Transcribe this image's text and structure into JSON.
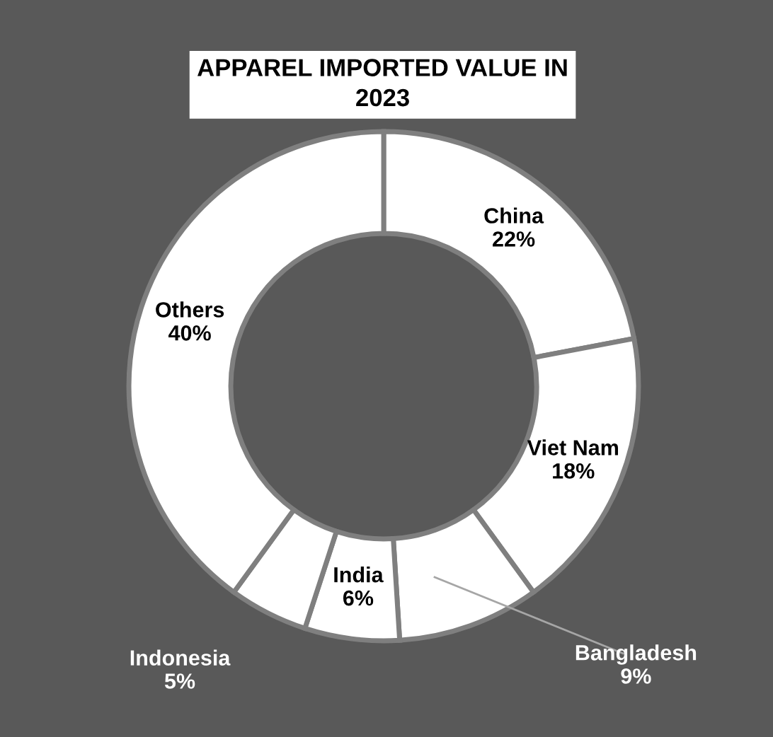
{
  "chart_data": {
    "type": "donut",
    "title": "APPAREL IMPORTED VALUE IN 2023",
    "categories": [
      "China",
      "Viet Nam",
      "Bangladesh",
      "India",
      "Indonesia",
      "Others"
    ],
    "values": [
      22,
      18,
      9,
      6,
      5,
      40
    ],
    "colors": [
      "#ffffff",
      "#ffffff",
      "#ffffff",
      "#ffffff",
      "#ffffff",
      "#ffffff"
    ],
    "value_labels": [
      "22%",
      "18%",
      "9%",
      "6%",
      "5%",
      "40%"
    ]
  }
}
